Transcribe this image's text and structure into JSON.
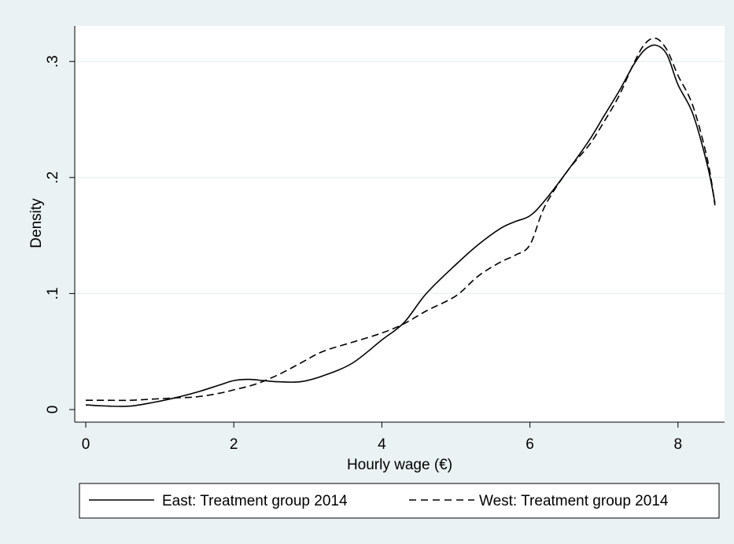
{
  "chart_data": {
    "type": "line",
    "title": "",
    "xlabel": "Hourly wage (€)",
    "ylabel": "Density",
    "xlim": [
      0,
      8.5
    ],
    "ylim": [
      0,
      0.32
    ],
    "x_ticks": [
      0,
      2,
      4,
      6,
      8
    ],
    "x_tick_labels": [
      "0",
      "2",
      "4",
      "6",
      "8"
    ],
    "y_ticks": [
      0,
      0.1,
      0.2,
      0.3
    ],
    "y_tick_labels": [
      "0",
      ".1",
      ".2",
      ".3"
    ],
    "grid": "horizontal",
    "legend_position": "bottom",
    "colors": {
      "background": "#eaf2f3",
      "plot_background": "#ffffff",
      "grid": "#eaf2f3",
      "line": "#000000"
    },
    "series": [
      {
        "name": "East: Treatment group 2014",
        "style": "solid",
        "x": [
          0,
          0.3,
          0.6,
          0.9,
          1.2,
          1.5,
          1.8,
          2.0,
          2.2,
          2.4,
          2.6,
          2.9,
          3.2,
          3.6,
          4.0,
          4.3,
          4.6,
          5.0,
          5.3,
          5.6,
          5.8,
          6.0,
          6.2,
          6.5,
          6.8,
          7.0,
          7.2,
          7.4,
          7.55,
          7.7,
          7.85,
          8.0,
          8.2,
          8.4,
          8.5
        ],
        "y": [
          0.004,
          0.003,
          0.003,
          0.006,
          0.01,
          0.015,
          0.021,
          0.025,
          0.026,
          0.025,
          0.024,
          0.024,
          0.029,
          0.04,
          0.06,
          0.075,
          0.1,
          0.125,
          0.142,
          0.156,
          0.162,
          0.167,
          0.18,
          0.205,
          0.232,
          0.253,
          0.274,
          0.297,
          0.31,
          0.314,
          0.306,
          0.28,
          0.255,
          0.21,
          0.178
        ]
      },
      {
        "name": "West: Treatment group 2014",
        "style": "dashed",
        "x": [
          0,
          0.3,
          0.6,
          0.9,
          1.2,
          1.5,
          1.8,
          2.0,
          2.3,
          2.6,
          2.9,
          3.2,
          3.6,
          4.0,
          4.3,
          4.6,
          5.0,
          5.3,
          5.6,
          5.8,
          6.0,
          6.2,
          6.5,
          6.8,
          7.0,
          7.2,
          7.4,
          7.55,
          7.7,
          7.85,
          8.0,
          8.2,
          8.4,
          8.5
        ],
        "y": [
          0.008,
          0.008,
          0.008,
          0.009,
          0.01,
          0.011,
          0.014,
          0.017,
          0.022,
          0.03,
          0.04,
          0.05,
          0.058,
          0.066,
          0.074,
          0.085,
          0.098,
          0.115,
          0.127,
          0.133,
          0.142,
          0.175,
          0.205,
          0.228,
          0.248,
          0.27,
          0.298,
          0.315,
          0.32,
          0.31,
          0.288,
          0.262,
          0.215,
          0.176
        ]
      }
    ]
  }
}
